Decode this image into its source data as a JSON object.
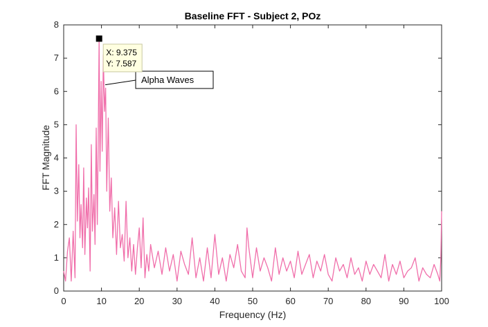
{
  "chart_data": {
    "type": "line",
    "title": "Baseline FFT - Subject 2, POz",
    "xlabel": "Frequency (Hz)",
    "ylabel": "FFT Magnitude",
    "xlim": [
      0,
      100
    ],
    "ylim": [
      0,
      8
    ],
    "xticks": [
      "0",
      "10",
      "20",
      "30",
      "40",
      "50",
      "60",
      "70",
      "80",
      "90",
      "100"
    ],
    "yticks": [
      "0",
      "1",
      "2",
      "3",
      "4",
      "5",
      "6",
      "7",
      "8"
    ],
    "grid": false,
    "legend": "none",
    "series": [
      {
        "color": "#f06eaa",
        "x": [
          0,
          0.5,
          1,
          1.5,
          2,
          2.5,
          3,
          3.3,
          3.6,
          4,
          4.3,
          4.6,
          5,
          5.3,
          5.6,
          6,
          6.3,
          6.6,
          7,
          7.3,
          7.6,
          8,
          8.3,
          8.6,
          8.9,
          9.1,
          9.375,
          9.6,
          9.9,
          10.2,
          10.5,
          10.8,
          11.1,
          11.4,
          11.8,
          12.2,
          12.6,
          13,
          13.5,
          14,
          14.5,
          15,
          15.5,
          16,
          16.5,
          17,
          17.5,
          18,
          18.5,
          19,
          19.5,
          20,
          20.5,
          21,
          21.5,
          22,
          22.5,
          23,
          24,
          25,
          26,
          27,
          28,
          29,
          30,
          31,
          32,
          33,
          34,
          35,
          36,
          37,
          38,
          39,
          40,
          41,
          42,
          43,
          44,
          45,
          46,
          47,
          48,
          48.5,
          49,
          50,
          51,
          52,
          53,
          54,
          55,
          56,
          57,
          58,
          59,
          60,
          61,
          62,
          63,
          64,
          65,
          66,
          67,
          68,
          69,
          70,
          71,
          72,
          73,
          74,
          75,
          76,
          77,
          78,
          79,
          80,
          81,
          82,
          83,
          84,
          85,
          86,
          87,
          88,
          89,
          90,
          91,
          92,
          93,
          94,
          95,
          96,
          97,
          98,
          99,
          99.5,
          99.8,
          100
        ],
        "values": [
          0.6,
          0.3,
          1.2,
          1.6,
          0.3,
          1.8,
          0.4,
          5.0,
          2.1,
          3.8,
          1.6,
          2.6,
          1.3,
          3.7,
          1.1,
          2.8,
          1.9,
          3.1,
          0.6,
          4.4,
          1.8,
          2.9,
          1.4,
          4.9,
          2.0,
          4.1,
          7.587,
          3.6,
          6.3,
          4.2,
          7.1,
          5.4,
          6.1,
          3.0,
          5.2,
          2.4,
          3.4,
          1.6,
          2.5,
          1.1,
          2.7,
          1.3,
          1.7,
          0.9,
          2.7,
          1.0,
          1.6,
          0.6,
          1.4,
          0.5,
          1.3,
          1.9,
          0.7,
          2.2,
          0.4,
          1.1,
          0.6,
          1.4,
          0.7,
          1.2,
          0.5,
          1.3,
          0.6,
          1.1,
          0.3,
          1.2,
          0.8,
          0.5,
          1.6,
          0.4,
          1.0,
          0.3,
          1.3,
          0.4,
          1.7,
          0.5,
          1.0,
          0.3,
          1.1,
          0.7,
          1.4,
          0.6,
          0.4,
          1.9,
          1.3,
          0.4,
          1.3,
          0.6,
          1.0,
          0.7,
          0.3,
          1.3,
          0.5,
          1.0,
          0.6,
          0.9,
          0.4,
          1.2,
          0.5,
          0.8,
          1.1,
          0.4,
          0.9,
          0.6,
          1.1,
          0.5,
          0.3,
          1.0,
          0.6,
          0.8,
          0.4,
          1.0,
          0.5,
          0.7,
          0.3,
          0.9,
          0.5,
          0.8,
          0.6,
          0.4,
          1.1,
          0.3,
          0.8,
          0.5,
          0.9,
          0.4,
          0.6,
          0.7,
          1.0,
          0.3,
          0.7,
          0.5,
          0.4,
          0.8,
          0.5,
          0.3,
          1.0,
          2.4
        ]
      }
    ],
    "datatip": {
      "x_label": "X: 9.375",
      "y_label": "Y: 7.587",
      "x": 9.375,
      "y": 7.587
    },
    "annotation": {
      "text": "Alpha Waves",
      "x": 11,
      "y": 6.2
    }
  }
}
